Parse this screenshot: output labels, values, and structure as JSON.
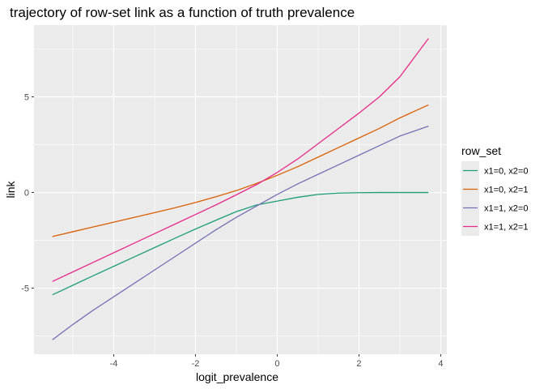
{
  "chart_data": {
    "type": "line",
    "title": "trajectory of row-set link as a function of truth prevalence",
    "xlabel": "logit_prevalence",
    "ylabel": "link",
    "xlim": [
      -5.95,
      4.15
    ],
    "ylim": [
      -8.45,
      8.75
    ],
    "x_ticks": [
      -4,
      -2,
      0,
      2,
      4
    ],
    "y_ticks": [
      -5,
      0,
      5
    ],
    "x_tick_labels": [
      "-4",
      "-2",
      "0",
      "2",
      "4"
    ],
    "y_tick_labels": [
      "-5",
      "0",
      "5"
    ],
    "grid": true,
    "legend": {
      "title": "row_set",
      "position": "right"
    },
    "series": [
      {
        "name": "x1=0, x2=0",
        "color": "#1b9e77",
        "points": [
          [
            -5.5,
            -5.35
          ],
          [
            -5,
            -4.85
          ],
          [
            -4.5,
            -4.35
          ],
          [
            -4,
            -3.86
          ],
          [
            -3.5,
            -3.37
          ],
          [
            -3,
            -2.88
          ],
          [
            -2.5,
            -2.39
          ],
          [
            -2,
            -1.91
          ],
          [
            -1.5,
            -1.45
          ],
          [
            -1,
            -1.0
          ],
          [
            -0.5,
            -0.65
          ],
          [
            0,
            -0.45
          ],
          [
            0.5,
            -0.25
          ],
          [
            1,
            -0.1
          ],
          [
            1.5,
            -0.03
          ],
          [
            2,
            -0.01
          ],
          [
            2.5,
            0.0
          ],
          [
            3,
            0.0
          ],
          [
            3.7,
            0.0
          ]
        ]
      },
      {
        "name": "x1=0, x2=1",
        "color": "#d95f02",
        "points": [
          [
            -5.5,
            -2.3
          ],
          [
            -5,
            -2.05
          ],
          [
            -4.5,
            -1.8
          ],
          [
            -4,
            -1.55
          ],
          [
            -3.5,
            -1.3
          ],
          [
            -3,
            -1.05
          ],
          [
            -2.5,
            -0.8
          ],
          [
            -2,
            -0.52
          ],
          [
            -1.5,
            -0.22
          ],
          [
            -1,
            0.1
          ],
          [
            -0.5,
            0.48
          ],
          [
            0,
            0.9
          ],
          [
            0.5,
            1.35
          ],
          [
            1,
            1.85
          ],
          [
            1.5,
            2.35
          ],
          [
            2,
            2.85
          ],
          [
            2.5,
            3.35
          ],
          [
            3,
            3.9
          ],
          [
            3.7,
            4.58
          ]
        ]
      },
      {
        "name": "x1=1, x2=0",
        "color": "#7570b3",
        "points": [
          [
            -5.5,
            -7.7
          ],
          [
            -5,
            -6.9
          ],
          [
            -4.5,
            -6.15
          ],
          [
            -4,
            -5.45
          ],
          [
            -3.5,
            -4.75
          ],
          [
            -3,
            -4.05
          ],
          [
            -2.5,
            -3.35
          ],
          [
            -2,
            -2.65
          ],
          [
            -1.5,
            -1.95
          ],
          [
            -1,
            -1.3
          ],
          [
            -0.5,
            -0.7
          ],
          [
            0,
            -0.1
          ],
          [
            0.5,
            0.45
          ],
          [
            1,
            0.95
          ],
          [
            1.5,
            1.45
          ],
          [
            2,
            1.95
          ],
          [
            2.5,
            2.45
          ],
          [
            3,
            2.95
          ],
          [
            3.7,
            3.47
          ]
        ]
      },
      {
        "name": "x1=1, x2=1",
        "color": "#e7298a",
        "points": [
          [
            -5.5,
            -4.65
          ],
          [
            -5,
            -4.15
          ],
          [
            -4.5,
            -3.65
          ],
          [
            -4,
            -3.15
          ],
          [
            -3.5,
            -2.65
          ],
          [
            -3,
            -2.15
          ],
          [
            -2.5,
            -1.65
          ],
          [
            -2,
            -1.15
          ],
          [
            -1.5,
            -0.65
          ],
          [
            -1,
            -0.12
          ],
          [
            -0.5,
            0.42
          ],
          [
            0,
            1.05
          ],
          [
            0.5,
            1.75
          ],
          [
            1,
            2.55
          ],
          [
            1.5,
            3.35
          ],
          [
            2,
            4.15
          ],
          [
            2.5,
            5.0
          ],
          [
            3,
            6.05
          ],
          [
            3.7,
            8.05
          ]
        ]
      }
    ]
  }
}
